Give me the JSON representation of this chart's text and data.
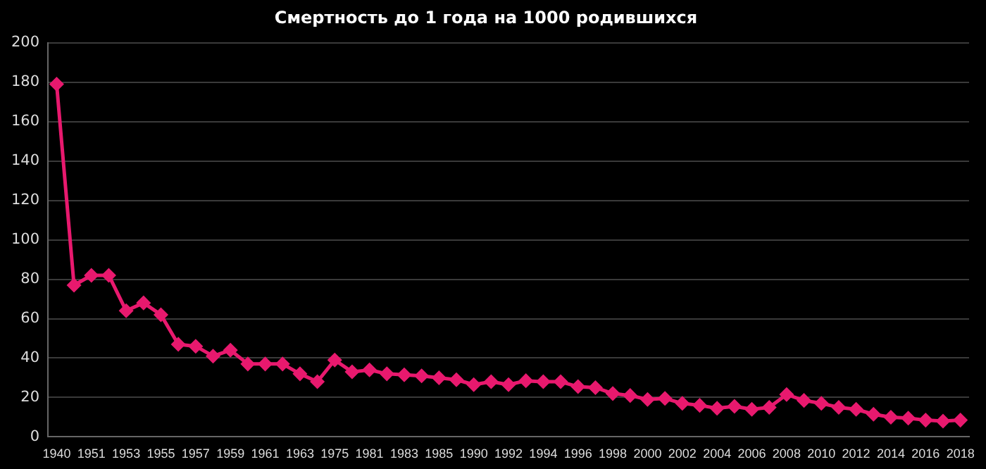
{
  "chart_data": {
    "type": "line",
    "title": "Смертность до 1 года на 1000 родившихся",
    "categories": [
      "1940",
      null,
      "1951",
      null,
      "1953",
      null,
      "1955",
      null,
      "1957",
      null,
      "1959",
      null,
      "1961",
      null,
      "1963",
      null,
      "1975",
      null,
      "1981",
      null,
      "1983",
      null,
      "1985",
      null,
      "1990",
      null,
      "1992",
      null,
      "1994",
      null,
      "1996",
      null,
      "1998",
      null,
      "2000",
      null,
      "2002",
      null,
      "2004",
      null,
      "2006",
      null,
      "2008",
      null,
      "2010",
      null,
      "2012",
      null,
      "2014",
      null,
      "2016",
      null,
      "2018"
    ],
    "series": [
      {
        "color": "#e8196e",
        "values": [
          179,
          77,
          82,
          82,
          64,
          68,
          62,
          47,
          46,
          41,
          44,
          37,
          37,
          37,
          32,
          28,
          39,
          33,
          34,
          32,
          31.5,
          31,
          30,
          29,
          26.5,
          28,
          26.5,
          28.5,
          28,
          28,
          25.5,
          25,
          22,
          21,
          19,
          19.5,
          17,
          16,
          14.5,
          15.5,
          14,
          15,
          21.5,
          18.5,
          17,
          15,
          14,
          11.5,
          10,
          9.5,
          8.5,
          8,
          8.5
        ]
      }
    ],
    "ylim": [
      0,
      200
    ],
    "yticks": [
      0,
      20,
      40,
      60,
      80,
      100,
      120,
      140,
      160,
      180,
      200
    ],
    "grid": "y",
    "legend": false,
    "marker": "diamond",
    "line_style": "solid"
  }
}
